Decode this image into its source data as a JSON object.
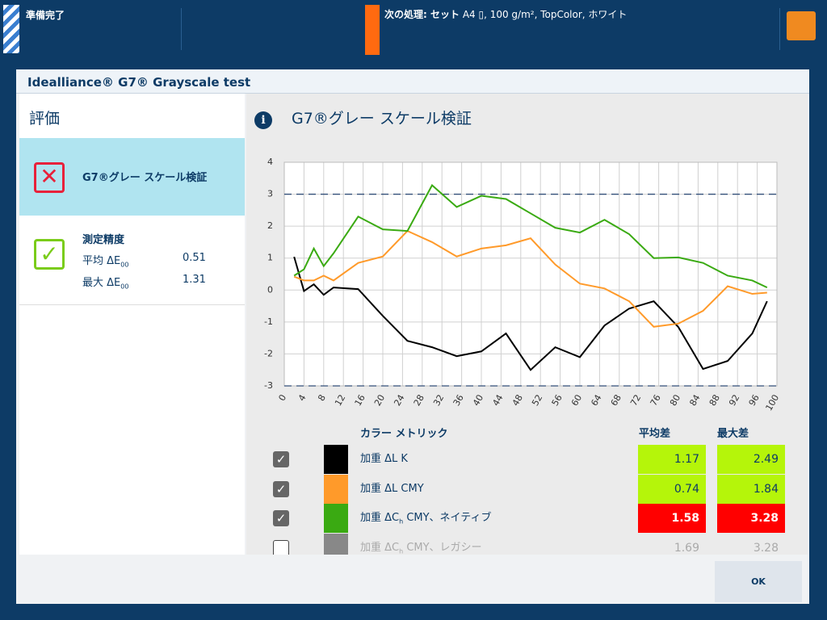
{
  "top_bar": {
    "status": "準備完了",
    "next_label": "次の処理: セット",
    "next_size": "A4",
    "next_details": ", 100 g/m², TopColor, ホワイト"
  },
  "dialog": {
    "title": "Idealliance® G7® Grayscale test",
    "ok": "OK"
  },
  "left_panel": {
    "heading": "評価",
    "verification": {
      "label": "G7®グレー スケール検証"
    },
    "accuracy": {
      "label": "測定精度",
      "rows": [
        {
          "label": "平均 ΔE",
          "sub": "00",
          "value": 0.51
        },
        {
          "label": "最大 ΔE",
          "sub": "00",
          "value": 1.31
        }
      ]
    }
  },
  "right_panel": {
    "title": "G7®グレー スケール検証"
  },
  "chart_data": {
    "type": "line",
    "x": [
      2,
      4,
      6,
      8,
      10,
      15,
      20,
      25,
      30,
      35,
      40,
      45,
      50,
      55,
      60,
      65,
      70,
      75,
      80,
      85,
      90,
      95,
      98
    ],
    "series": [
      {
        "color": "#000000",
        "values": [
          1.04,
          -0.03,
          0.18,
          -0.15,
          0.08,
          0.03,
          -0.81,
          -1.59,
          -1.79,
          -2.07,
          -1.92,
          -1.36,
          -2.5,
          -1.79,
          -2.1,
          -1.11,
          -0.58,
          -0.35,
          -1.16,
          -2.47,
          -2.22,
          -1.36,
          -0.35
        ]
      },
      {
        "color": "#ff9a2a",
        "values": [
          0.42,
          0.3,
          0.3,
          0.45,
          0.3,
          0.85,
          1.05,
          1.85,
          1.5,
          1.05,
          1.3,
          1.4,
          1.62,
          0.8,
          0.2,
          0.05,
          -0.35,
          -1.15,
          -1.05,
          -0.65,
          0.12,
          -0.12,
          -0.08
        ]
      },
      {
        "color": "#3aaa12",
        "values": [
          0.45,
          0.65,
          1.3,
          0.75,
          1.15,
          2.3,
          1.9,
          1.85,
          3.28,
          2.6,
          2.95,
          2.85,
          2.4,
          1.95,
          1.8,
          2.2,
          1.75,
          1.0,
          1.02,
          0.85,
          0.45,
          0.3,
          0.08
        ]
      }
    ],
    "xlim": [
      0,
      100
    ],
    "xticks": [
      0,
      4,
      8,
      12,
      16,
      20,
      24,
      28,
      32,
      36,
      40,
      44,
      48,
      52,
      56,
      60,
      64,
      68,
      72,
      76,
      80,
      84,
      88,
      92,
      96,
      100
    ],
    "ylim": [
      -3,
      4
    ],
    "yticks": [
      -3,
      -2,
      -1,
      0,
      1,
      2,
      3,
      4
    ],
    "reference_lines": [
      3,
      -3
    ],
    "grid": true
  },
  "metrics_table": {
    "headers": [
      "カラー メトリック",
      "平均差",
      "最大差"
    ],
    "rows": [
      {
        "checked": true,
        "color": "#000000",
        "label": "加重 ΔL K",
        "mean": 1.17,
        "max": 2.49,
        "mean_bg": "#b5f50a",
        "max_bg": "#b5f50a"
      },
      {
        "checked": true,
        "color": "#ff9a2a",
        "label": "加重 ΔL CMY",
        "mean": 0.74,
        "max": 1.84,
        "mean_bg": "#b5f50a",
        "max_bg": "#b5f50a"
      },
      {
        "checked": true,
        "color": "#3aaa12",
        "label": "加重 ΔC",
        "sub": "h",
        "suffix": " CMY、ネイティブ",
        "mean": 1.58,
        "max": 3.28,
        "mean_bg": "#ff0000",
        "max_bg": "#ff0000"
      },
      {
        "checked": false,
        "color": "#888888",
        "label": "加重 ΔC",
        "sub": "h",
        "suffix": " CMY、レガシー",
        "mean": 1.69,
        "max": 3.28
      }
    ]
  }
}
